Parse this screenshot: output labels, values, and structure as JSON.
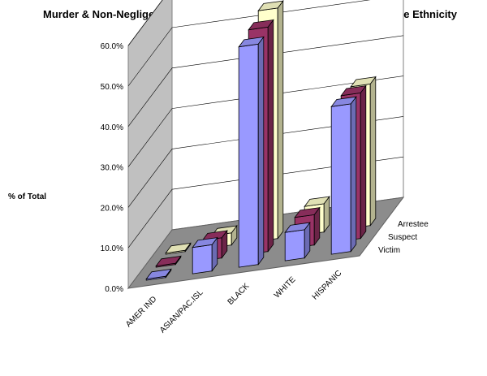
{
  "chart_data": {
    "type": "bar",
    "title": "Murder & Non-Negligent Manslaughter Victim,Suspect and Arrestee Race Ethnicity",
    "ylabel": "% of Total",
    "xlabel": "",
    "ylim": [
      0,
      60
    ],
    "yticks": [
      "0.0%",
      "10.0%",
      "20.0%",
      "30.0%",
      "40.0%",
      "50.0%",
      "60.0%"
    ],
    "categories": [
      "AMER IND",
      "ASIAN/PAC.ISL",
      "BLACK",
      "WHITE",
      "HISPANIC"
    ],
    "series": [
      {
        "name": "Victim",
        "values": [
          0.3,
          6.5,
          54.5,
          7.0,
          36.5
        ],
        "color": "#9999ff"
      },
      {
        "name": "Suspect",
        "values": [
          0.3,
          5.0,
          55.5,
          7.5,
          36.0
        ],
        "color": "#993366"
      },
      {
        "name": "Arrestee",
        "values": [
          0.3,
          3.0,
          57.0,
          7.0,
          35.0
        ],
        "color": "#ffffcc"
      }
    ],
    "grid": true,
    "projection": "3d-column"
  }
}
